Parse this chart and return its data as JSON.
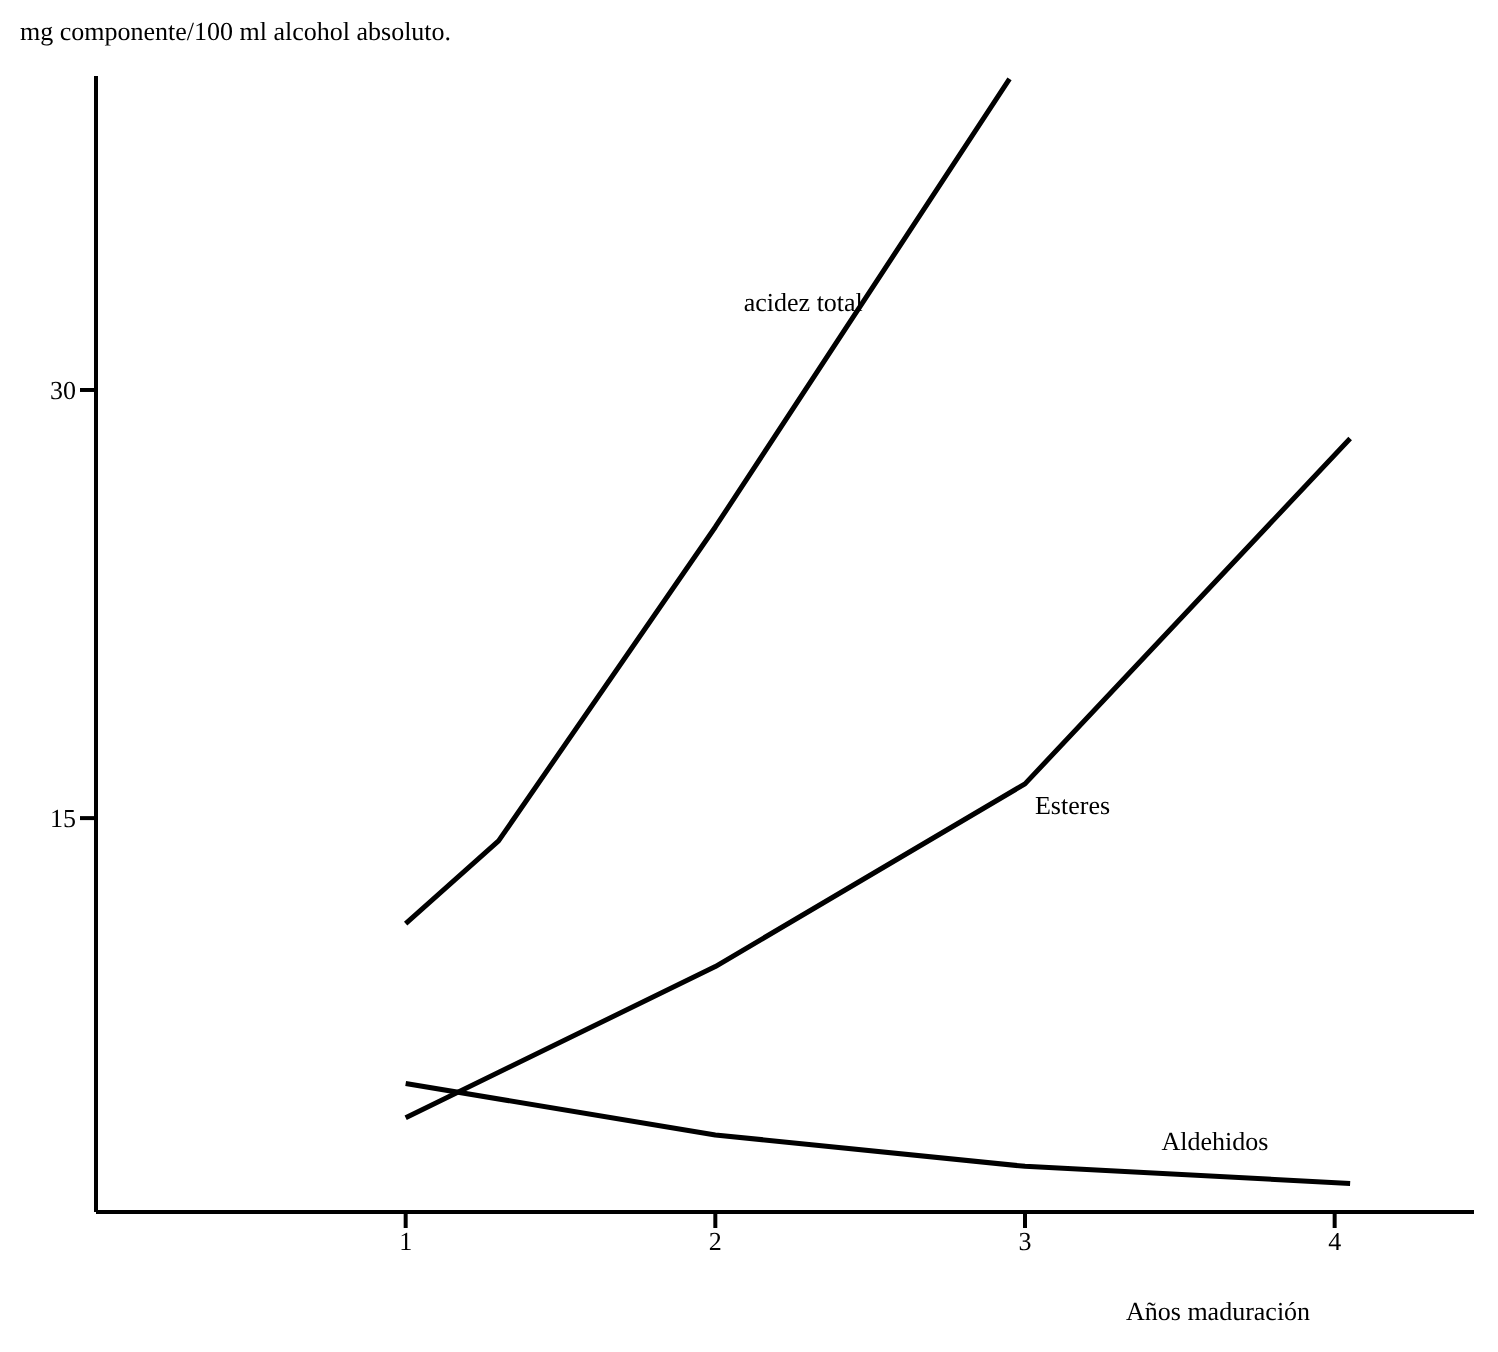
{
  "chart_data": {
    "type": "line",
    "ylabel": "mg componente/100 ml alcohol absoluto.",
    "xlabel": "Años maduración",
    "xlim": [
      0,
      4.45
    ],
    "xticks": [
      1,
      2,
      3,
      4
    ],
    "ylim": [
      1.2,
      41
    ],
    "yticks": [
      15,
      30
    ],
    "grid": false,
    "marker": "none",
    "line_style": "solid",
    "series": [
      {
        "name": "acidez total",
        "color": "#000000",
        "x": [
          1,
          1.3,
          2,
          2.95
        ],
        "values": [
          11.3,
          14.2,
          25.2,
          40.9
        ]
      },
      {
        "name": "Esteres",
        "color": "#000000",
        "x": [
          1,
          2,
          3,
          4.05
        ],
        "values": [
          4.5,
          9.8,
          16.2,
          28.3
        ]
      },
      {
        "name": "Aldehidos",
        "color": "#000000",
        "x": [
          1,
          2,
          3,
          4.05
        ],
        "values": [
          5.7,
          3.9,
          2.8,
          2.2
        ]
      }
    ]
  }
}
